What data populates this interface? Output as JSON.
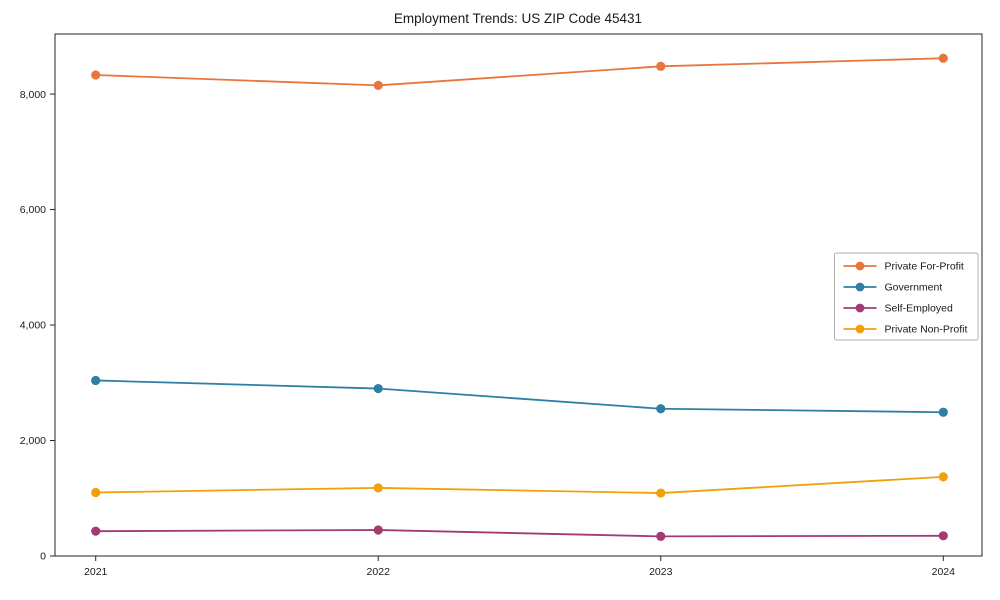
{
  "chart_data": {
    "type": "line",
    "title": "Employment Trends: US ZIP Code 45431",
    "xlabel": "",
    "ylabel": "",
    "x": [
      2021,
      2022,
      2023,
      2024
    ],
    "x_tick_labels": [
      "2021",
      "2022",
      "2023",
      "2024"
    ],
    "y_ticks": [
      0,
      2000,
      4000,
      6000,
      8000
    ],
    "y_tick_labels": [
      "0",
      "2,000",
      "4,000",
      "6,000",
      "8,000"
    ],
    "ylim": [
      0,
      9040
    ],
    "grid": false,
    "legend_position": "center-right",
    "marker": "circle",
    "series": [
      {
        "name": "Private For-Profit",
        "color": "#e8763c",
        "values": [
          8330,
          8150,
          8480,
          8620
        ]
      },
      {
        "name": "Government",
        "color": "#2e7fa3",
        "values": [
          3040,
          2900,
          2550,
          2490
        ]
      },
      {
        "name": "Self-Employed",
        "color": "#a23b72",
        "values": [
          430,
          450,
          340,
          350
        ]
      },
      {
        "name": "Private Non-Profit",
        "color": "#f1a008",
        "values": [
          1100,
          1180,
          1090,
          1370
        ]
      }
    ],
    "colors": {
      "spine": "#262626",
      "tick": "#262626",
      "text": "#1a1a1a",
      "legend_border": "#b0b0b0",
      "background": "#ffffff"
    }
  }
}
